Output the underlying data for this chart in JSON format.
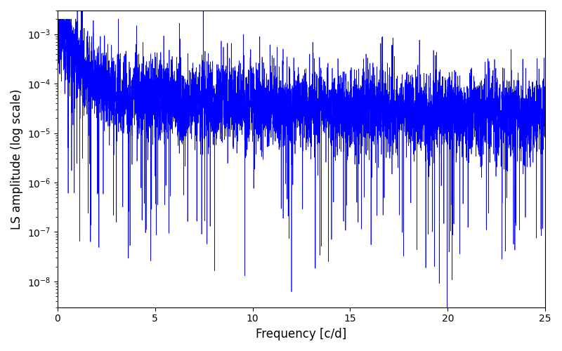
{
  "xlabel": "Frequency [c/d]",
  "ylabel": "LS amplitude (log scale)",
  "line_color": "#0000ff",
  "xlim": [
    0,
    25
  ],
  "ylim": [
    3e-09,
    0.003
  ],
  "yscale": "log",
  "background_color": "#ffffff",
  "fig_width": 8.0,
  "fig_height": 5.0,
  "seed": 12345,
  "n_points": 8000,
  "freq_max": 25.0
}
